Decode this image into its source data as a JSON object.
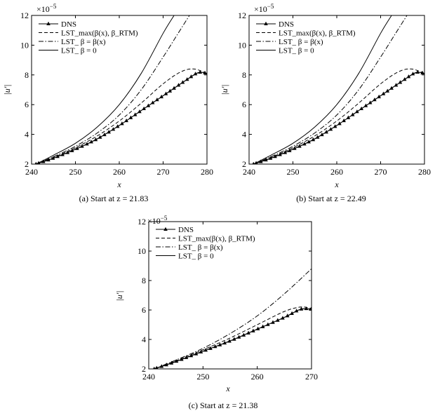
{
  "chart_data": [
    {
      "type": "line",
      "caption": "(a) Start at z = 21.83",
      "xlabel": "x",
      "ylabel": "|u'|",
      "y_multiplier": "×10",
      "y_multiplier_exp": "−5",
      "xlim": [
        240,
        280
      ],
      "ylim": [
        2,
        12
      ],
      "xticks": [
        240,
        250,
        260,
        270,
        280
      ],
      "yticks": [
        2,
        4,
        6,
        8,
        10,
        12
      ],
      "legend_position": "top-left",
      "series": [
        {
          "name": "DNS",
          "style": "solid-triangle",
          "x": [
            241,
            245,
            250,
            255,
            260,
            265,
            270,
            275,
            278,
            280
          ],
          "y": [
            2.0,
            2.4,
            3.0,
            3.7,
            4.6,
            5.6,
            6.6,
            7.6,
            8.15,
            8.1
          ]
        },
        {
          "name": "LST_max(β(x), β_RTM)",
          "style": "dashed",
          "x": [
            241,
            245,
            250,
            255,
            260,
            265,
            270,
            274,
            277,
            280
          ],
          "y": [
            2.0,
            2.45,
            3.1,
            3.9,
            4.9,
            6.1,
            7.4,
            8.2,
            8.4,
            8.1
          ]
        },
        {
          "name": "LST_ β = β(x)",
          "style": "dashdot",
          "x": [
            241,
            245,
            250,
            255,
            260,
            265,
            270,
            273,
            276
          ],
          "y": [
            2.0,
            2.5,
            3.2,
            4.1,
            5.3,
            7.0,
            9.2,
            10.6,
            12.0
          ]
        },
        {
          "name": "LST_ β = 0",
          "style": "solid",
          "x": [
            241,
            245,
            250,
            255,
            260,
            265,
            270,
            272.5
          ],
          "y": [
            2.0,
            2.6,
            3.4,
            4.5,
            6.0,
            8.1,
            10.8,
            12.0
          ]
        }
      ]
    },
    {
      "type": "line",
      "caption": "(b) Start at z = 22.49",
      "xlabel": "x",
      "ylabel": "|u'|",
      "y_multiplier": "×10",
      "y_multiplier_exp": "−5",
      "xlim": [
        240,
        280
      ],
      "ylim": [
        2,
        12
      ],
      "xticks": [
        240,
        250,
        260,
        270,
        280
      ],
      "yticks": [
        2,
        4,
        6,
        8,
        10,
        12
      ],
      "legend_position": "top-left",
      "series": [
        {
          "name": "DNS",
          "style": "solid-triangle",
          "x": [
            241,
            245,
            250,
            255,
            260,
            265,
            270,
            275,
            278,
            280
          ],
          "y": [
            2.0,
            2.4,
            3.0,
            3.7,
            4.6,
            5.6,
            6.6,
            7.6,
            8.15,
            8.1
          ]
        },
        {
          "name": "LST_max(β(x), β_RTM)",
          "style": "dashed",
          "x": [
            241,
            245,
            250,
            255,
            260,
            265,
            270,
            274,
            277,
            280
          ],
          "y": [
            2.0,
            2.45,
            3.1,
            3.9,
            4.9,
            6.1,
            7.4,
            8.2,
            8.4,
            8.1
          ]
        },
        {
          "name": "LST_ β = β(x)",
          "style": "dashdot",
          "x": [
            241,
            245,
            250,
            255,
            260,
            265,
            270,
            273,
            276
          ],
          "y": [
            2.0,
            2.5,
            3.2,
            4.1,
            5.3,
            7.0,
            9.2,
            10.6,
            12.0
          ]
        },
        {
          "name": "LST_ β = 0",
          "style": "solid",
          "x": [
            241,
            245,
            250,
            255,
            260,
            265,
            270,
            272.5
          ],
          "y": [
            2.0,
            2.6,
            3.4,
            4.5,
            6.0,
            8.1,
            10.8,
            12.0
          ]
        }
      ]
    },
    {
      "type": "line",
      "caption": "(c) Start at z = 21.38",
      "xlabel": "x",
      "ylabel": "|u'|",
      "y_multiplier": "×10",
      "y_multiplier_exp": "−5",
      "xlim": [
        240,
        270
      ],
      "ylim": [
        2,
        12
      ],
      "xticks": [
        240,
        250,
        260,
        270
      ],
      "yticks": [
        2,
        4,
        6,
        8,
        10,
        12
      ],
      "legend_position": "top-left",
      "series": [
        {
          "name": "DNS",
          "style": "solid-triangle",
          "x": [
            241,
            245,
            250,
            255,
            260,
            265,
            268,
            270
          ],
          "y": [
            2.0,
            2.5,
            3.2,
            3.9,
            4.7,
            5.5,
            6.05,
            6.05
          ]
        },
        {
          "name": "LST_max(β(x), β_RTM)",
          "style": "dashed",
          "x": [
            241,
            245,
            250,
            255,
            260,
            265,
            268,
            270
          ],
          "y": [
            2.0,
            2.55,
            3.3,
            4.1,
            5.0,
            5.9,
            6.2,
            6.1
          ]
        },
        {
          "name": "LST_ β = β(x)",
          "style": "dashdot",
          "x": [
            241,
            245,
            250,
            255,
            260,
            265,
            270
          ],
          "y": [
            2.0,
            2.6,
            3.4,
            4.4,
            5.6,
            7.1,
            8.8
          ]
        },
        {
          "name": "LST_ β = 0",
          "style": "solid",
          "x": [],
          "y": []
        }
      ]
    }
  ]
}
